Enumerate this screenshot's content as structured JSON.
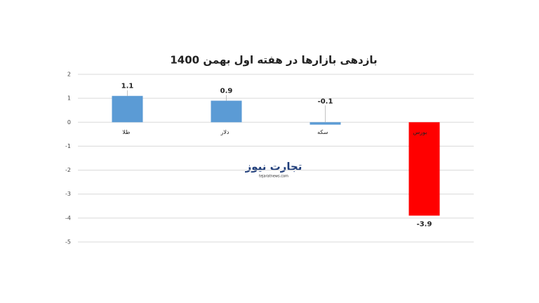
{
  "chart_data": {
    "type": "bar",
    "title": "بازدهی بازارها در هفته اول بهمن 1400",
    "categories": [
      "طلا",
      "دلار",
      "سکه",
      "بورس"
    ],
    "values": [
      1.1,
      0.9,
      -0.1,
      -3.9
    ],
    "colors": [
      "#5b9bd5",
      "#5b9bd5",
      "#5b9bd5",
      "#ff0000"
    ],
    "ylim": [
      -5,
      2
    ],
    "yticks": [
      -5,
      -4,
      -3,
      -2,
      -1,
      0,
      1,
      2
    ],
    "grid": true,
    "watermark": {
      "brand": "تجارت نیوز",
      "site": "tejaratnews.com"
    }
  }
}
